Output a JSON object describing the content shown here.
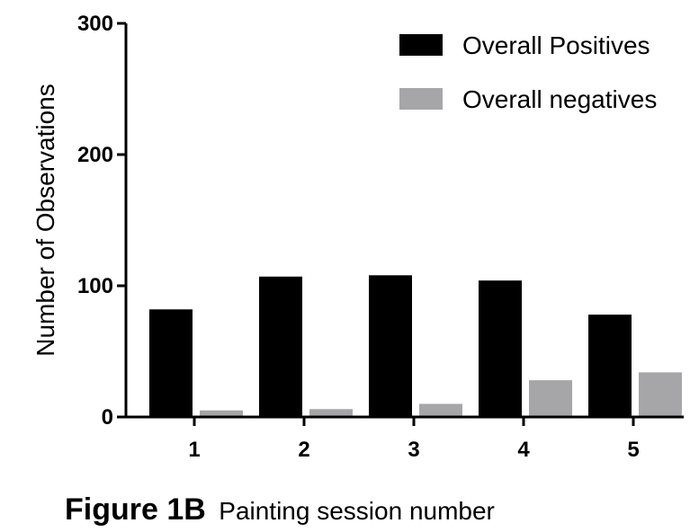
{
  "chart_data": {
    "type": "bar",
    "categories": [
      "1",
      "2",
      "3",
      "4",
      "5"
    ],
    "series": [
      {
        "name": "Overall Positives",
        "values": [
          82,
          107,
          108,
          104,
          78
        ],
        "color": "#000000"
      },
      {
        "name": "Overall negatives",
        "values": [
          5,
          6,
          10,
          28,
          34
        ],
        "color": "#a6a6a8"
      }
    ],
    "title": "",
    "figure_label": "Figure 1B",
    "xlabel": "Painting session number",
    "ylabel": "Number of Observations",
    "ylim": [
      0,
      300
    ],
    "yticks": [
      0,
      100,
      200,
      300
    ],
    "grid": false,
    "legend_position": "top-right"
  }
}
